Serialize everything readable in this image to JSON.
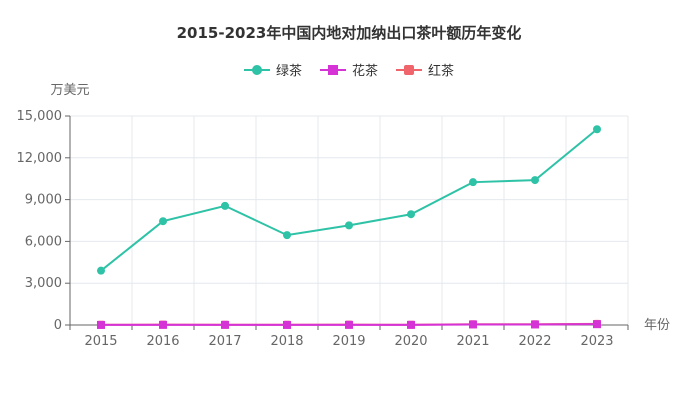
{
  "chart_data": {
    "type": "line",
    "title": "2015-2023年中国内地对加纳出口茶叶额历年变化",
    "ylabel": "万美元",
    "xlabel": "年份",
    "categories": [
      "2015",
      "2016",
      "2017",
      "2018",
      "2019",
      "2020",
      "2021",
      "2022",
      "2023"
    ],
    "ylim": [
      0,
      15000
    ],
    "yticks": [
      0,
      3000,
      6000,
      9000,
      12000,
      15000
    ],
    "ytick_labels": [
      "0",
      "3,000",
      "6,000",
      "9,000",
      "12,000",
      "15,000"
    ],
    "grid": true,
    "legend_position": "top-center",
    "series": [
      {
        "name": "绿茶",
        "marker": "circle",
        "color": "#2ec2a6",
        "values": [
          3900,
          7450,
          8550,
          6450,
          7150,
          7950,
          10250,
          10400,
          14050
        ]
      },
      {
        "name": "花茶",
        "marker": "square",
        "color": "#d633d6",
        "values": [
          5,
          10,
          10,
          5,
          10,
          10,
          40,
          40,
          60
        ]
      },
      {
        "name": "红茶",
        "marker": "rounded-square",
        "color": "#f0656b",
        "values": [
          20,
          25,
          20,
          20,
          25,
          20,
          50,
          50,
          80
        ]
      }
    ]
  }
}
